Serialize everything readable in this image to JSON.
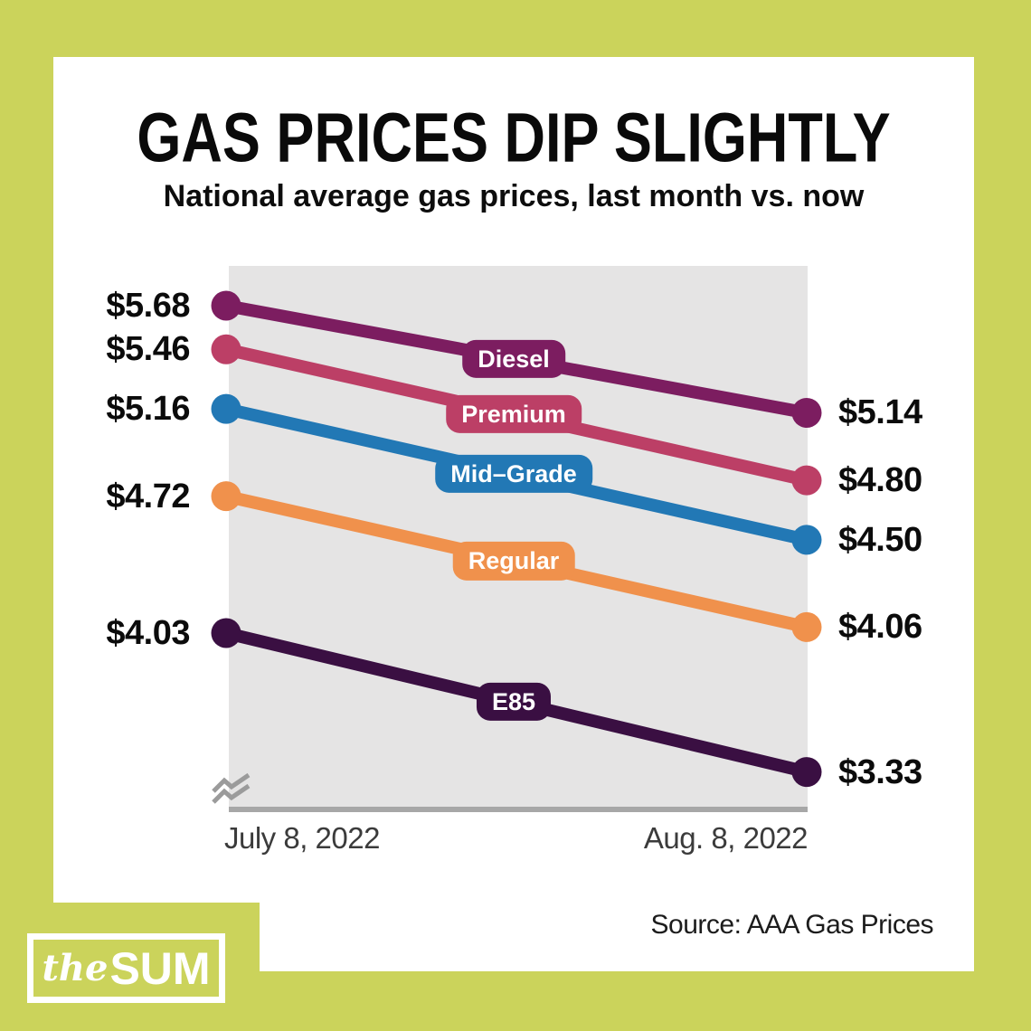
{
  "page": {
    "background_color": "#cbd35b",
    "card_color": "#ffffff"
  },
  "header": {
    "title": "GAS PRICES DIP SLIGHTLY",
    "subtitle": "National average gas prices, last month vs. now"
  },
  "x_axis": {
    "left_label": "July 8, 2022",
    "right_label": "Aug. 8, 2022"
  },
  "footer": {
    "source": "Source: AAA Gas Prices",
    "logo_the": "the",
    "logo_sum": "SUM"
  },
  "chart_data": {
    "type": "line",
    "title": "GAS PRICES DIP SLIGHTLY",
    "subtitle": "National average gas prices, last month vs. now",
    "x": [
      "July 8, 2022",
      "Aug. 8, 2022"
    ],
    "series": [
      {
        "name": "Diesel",
        "values": [
          5.68,
          5.14
        ],
        "labels": [
          "$5.68",
          "$5.14"
        ],
        "color": "#7c1d60"
      },
      {
        "name": "Premium",
        "values": [
          5.46,
          4.8
        ],
        "labels": [
          "$5.46",
          "$4.80"
        ],
        "color": "#bc3f66"
      },
      {
        "name": "Mid–Grade",
        "values": [
          5.16,
          4.5
        ],
        "labels": [
          "$5.16",
          "$4.50"
        ],
        "color": "#2278b5"
      },
      {
        "name": "Regular",
        "values": [
          4.72,
          4.06
        ],
        "labels": [
          "$4.72",
          "$4.06"
        ],
        "color": "#f0914c"
      },
      {
        "name": "E85",
        "values": [
          4.03,
          3.33
        ],
        "labels": [
          "$4.03",
          "$3.33"
        ],
        "color": "#3a0f42"
      }
    ],
    "ylim": [
      3.1,
      5.9
    ],
    "grid": false,
    "legend_position": "on-line-badges",
    "plot_background": "#e5e4e4",
    "axis_color": "#a7a7a7",
    "axis_break": true,
    "source": "Source: AAA Gas Prices"
  }
}
